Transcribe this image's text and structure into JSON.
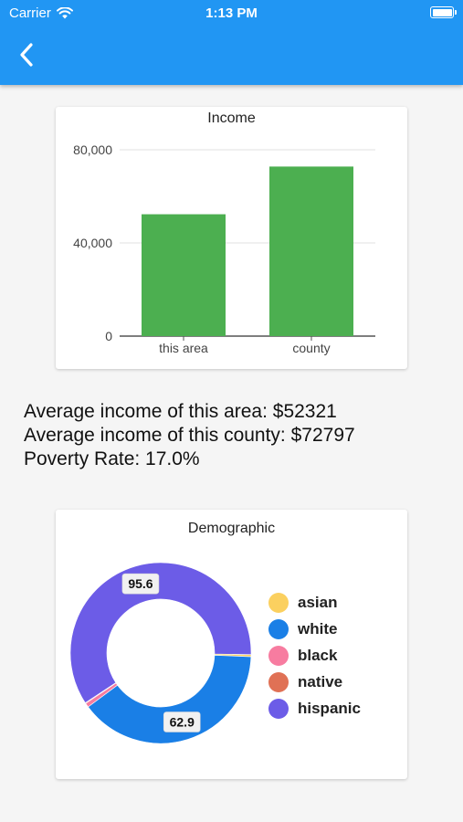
{
  "status_bar": {
    "carrier": "Carrier",
    "time": "1:13 PM"
  },
  "income_card": {
    "title": "Income",
    "chart_data": {
      "type": "bar",
      "categories": [
        "this area",
        "county"
      ],
      "values": [
        52321,
        72797
      ],
      "title": "Income",
      "ylim": [
        0,
        80000
      ],
      "yticks": [
        0,
        40000,
        80000
      ],
      "ytick_labels": [
        "0",
        "40,000",
        "80,000"
      ],
      "color": "#4caf50"
    }
  },
  "info": {
    "area_income": "Average income of this area: $52321",
    "county_income": "Average income of this county: $72797",
    "poverty_rate": "Poverty Rate: 17.0%"
  },
  "demographic_card": {
    "title": "Demographic",
    "chart_data": {
      "type": "pie",
      "title": "Demographic",
      "categories": [
        "asian",
        "white",
        "black",
        "native",
        "hispanic"
      ],
      "colors": [
        "#fbd05f",
        "#1a7fe6",
        "#f77ca0",
        "#e07155",
        "#6c5ce7"
      ],
      "values": [
        0.6,
        62.9,
        1.2,
        0.2,
        95.6
      ],
      "data_labels": [
        {
          "category": "hispanic",
          "label": "95.6"
        },
        {
          "category": "white",
          "label": "62.9"
        }
      ],
      "legend_position": "right"
    }
  }
}
